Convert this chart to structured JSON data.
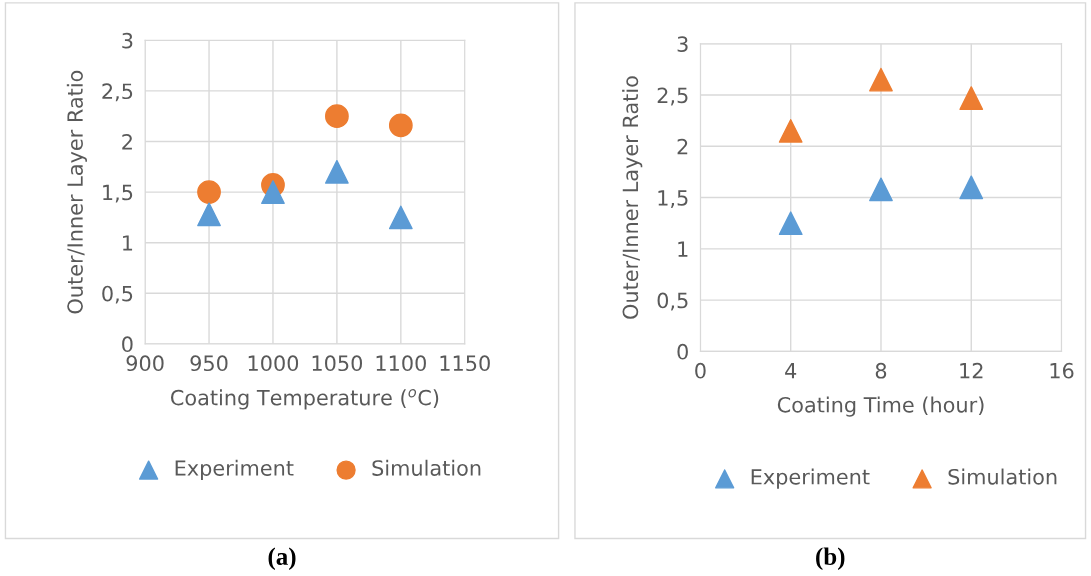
{
  "chart_data": [
    {
      "type": "scatter",
      "xlabel": "Coating Temperature ($^{o}$C)",
      "ylabel": "Outer/Inner Layer Ratio",
      "x": [
        950,
        1000,
        1050,
        1100
      ],
      "series": [
        {
          "name": "Experiment",
          "color": "#5b9bd5",
          "marker": "triangle",
          "values": [
            1.28,
            1.5,
            1.7,
            1.25
          ]
        },
        {
          "name": "Simulation",
          "color": "#ed7d31",
          "marker": "circle",
          "values": [
            1.5,
            1.57,
            2.25,
            2.16
          ]
        }
      ],
      "xlim": [
        900,
        1150
      ],
      "xticks": [
        900,
        950,
        1000,
        1050,
        1100,
        1150
      ],
      "ylim": [
        0,
        3
      ],
      "yticks": [
        0,
        {
          "value": 0.5,
          "label": "0,5"
        },
        1,
        {
          "value": 1.5,
          "label": "1,5"
        },
        2,
        {
          "value": 2.5,
          "label": "2,5"
        },
        3
      ],
      "grid": true,
      "legend": "bottom",
      "annotations": [
        "(a)"
      ]
    },
    {
      "type": "scatter",
      "xlabel": "Coating Time (hour)",
      "ylabel": "Outer/Inner Layer Ratio",
      "x": [
        4,
        8,
        12
      ],
      "series": [
        {
          "name": "Experiment",
          "color": "#5b9bd5",
          "marker": "triangle",
          "values": [
            1.25,
            1.58,
            1.6
          ]
        },
        {
          "name": "Simulation",
          "color": "#ed7d31",
          "marker": "triangle",
          "values": [
            2.15,
            2.65,
            2.47
          ]
        }
      ],
      "xlim": [
        0,
        16
      ],
      "xticks": [
        0,
        4,
        8,
        12,
        16
      ],
      "ylim": [
        0,
        3
      ],
      "yticks": [
        0,
        {
          "value": 0.5,
          "label": "0,5"
        },
        1,
        {
          "value": 1.5,
          "label": "1,5"
        },
        2,
        {
          "value": 2.5,
          "label": "2,5"
        },
        3
      ],
      "grid": true,
      "legend": "bottom",
      "annotations": [
        "(b)"
      ]
    }
  ]
}
